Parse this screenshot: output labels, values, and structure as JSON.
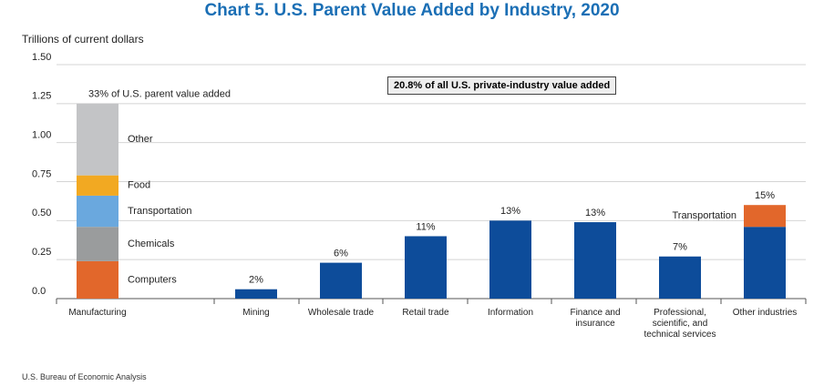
{
  "chart_data": {
    "type": "stacked-bar",
    "title": "Chart 5. U.S. Parent Value Added by Industry, 2020",
    "y_label": "Trillions of current dollars",
    "annotation": "20.8% of all U.S. private-industry value added",
    "source": "U.S. Bureau of Economic Analysis",
    "categories": [
      "Manufacturing",
      "Mining",
      "Wholesale trade",
      "Retail trade",
      "Information",
      "Finance and insurance",
      "Professional, scientific, and technical services",
      "Other industries"
    ],
    "share_labels": [
      "33% of U.S. parent value added",
      "2%",
      "6%",
      "11%",
      "13%",
      "13%",
      "7%",
      "15%"
    ],
    "series": [
      {
        "name": "Computers",
        "color": "#e2672b",
        "label_color": "#e2672b",
        "values": [
          0.24,
          null,
          null,
          null,
          null,
          null,
          null,
          null
        ]
      },
      {
        "name": "Chemicals",
        "color": "#9a9c9d",
        "label_color": "#555555",
        "values": [
          0.22,
          null,
          null,
          null,
          null,
          null,
          null,
          null
        ]
      },
      {
        "name": "Transportation",
        "color": "#6aa8de",
        "label_color": "#2f7fc4",
        "values": [
          0.2,
          null,
          null,
          null,
          null,
          null,
          null,
          null
        ]
      },
      {
        "name": "Food",
        "color": "#f2a922",
        "label_color": "#e59a14",
        "values": [
          0.13,
          null,
          null,
          null,
          null,
          null,
          null,
          null
        ]
      },
      {
        "name": "Other",
        "color": "#c3c4c6",
        "label_color": "#777777",
        "values": [
          0.46,
          null,
          null,
          null,
          null,
          null,
          null,
          null
        ]
      },
      {
        "color": "#0d4c9a",
        "values": [
          null,
          0.06,
          0.23,
          0.4,
          0.5,
          0.49,
          0.27,
          0.46
        ]
      },
      {
        "name": "Transportation",
        "color": "#e2672b",
        "label_color": "#e2672b",
        "values": [
          null,
          null,
          null,
          null,
          null,
          null,
          null,
          0.14
        ]
      }
    ],
    "ylim": [
      0,
      1.5
    ],
    "yticks": [
      {
        "value": 0,
        "label": "0.0"
      },
      0.25,
      {
        "value": 0.5,
        "label": "0.50"
      },
      0.75,
      {
        "value": 1,
        "label": "1.00"
      },
      1.25,
      {
        "value": 1.5,
        "label": "1.50"
      }
    ],
    "grid": true
  }
}
